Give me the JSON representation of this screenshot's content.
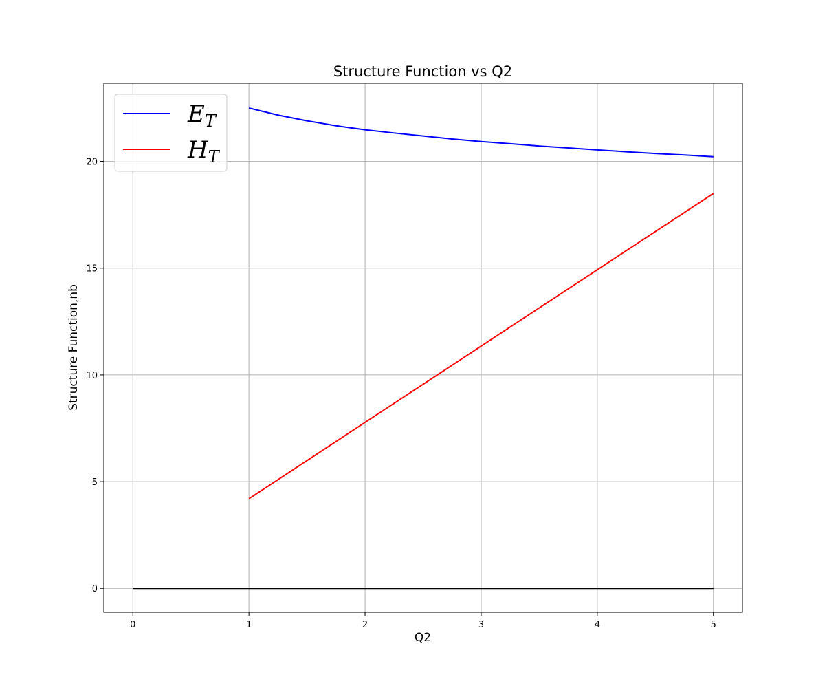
{
  "chart_data": {
    "type": "line",
    "title": "Structure Function vs Q2",
    "xlabel": "Q2",
    "ylabel": "Structure Function,nb",
    "xlim": [
      -0.25,
      5.25
    ],
    "ylim": [
      -1.12,
      23.66
    ],
    "xticks": [
      0,
      1,
      2,
      3,
      4,
      5
    ],
    "yticks": [
      0,
      5,
      10,
      15,
      20
    ],
    "grid": true,
    "legend_position": "top-left",
    "series": [
      {
        "name": "E",
        "subscript": "T",
        "color": "#0000ff",
        "x": [
          1.0,
          1.25,
          1.5,
          1.75,
          2.0,
          2.25,
          2.5,
          2.75,
          3.0,
          3.25,
          3.5,
          3.75,
          4.0,
          4.25,
          4.5,
          4.75,
          5.0
        ],
        "y": [
          22.5,
          22.17,
          21.9,
          21.67,
          21.48,
          21.33,
          21.19,
          21.05,
          20.93,
          20.83,
          20.72,
          20.63,
          20.54,
          20.45,
          20.37,
          20.3,
          20.22
        ]
      },
      {
        "name": "H",
        "subscript": "T",
        "color": "#ff0000",
        "x": [
          1.0,
          5.0
        ],
        "y": [
          4.2,
          18.5
        ]
      },
      {
        "color": "#000000",
        "x": [
          0,
          5
        ],
        "y": [
          0,
          0
        ]
      }
    ]
  }
}
